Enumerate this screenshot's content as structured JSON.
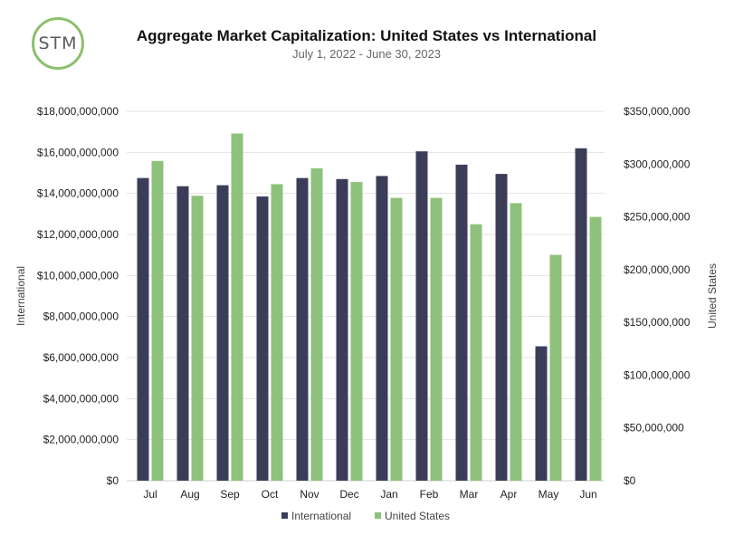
{
  "logo": {
    "text": "STM"
  },
  "chart_data": {
    "type": "bar",
    "title": "Aggregate Market Capitalization: United States vs International",
    "subtitle": "July 1, 2022 - June 30, 2023",
    "categories": [
      "Jul",
      "Aug",
      "Sep",
      "Oct",
      "Nov",
      "Dec",
      "Jan",
      "Feb",
      "Mar",
      "Apr",
      "May",
      "Jun"
    ],
    "series": [
      {
        "name": "International",
        "axis": "left",
        "color": "#3b3d58",
        "values": [
          14750000000,
          14350000000,
          14400000000,
          13850000000,
          14750000000,
          14700000000,
          14850000000,
          16050000000,
          15400000000,
          14950000000,
          6550000000,
          16200000000
        ]
      },
      {
        "name": "United States",
        "axis": "right",
        "color": "#8ec17b",
        "values": [
          303000000,
          270000000,
          329000000,
          281000000,
          296000000,
          283000000,
          268000000,
          268000000,
          243000000,
          263000000,
          214000000,
          250000000
        ]
      }
    ],
    "ylabel_left": "International",
    "ylabel_right": "United States",
    "ylim_left": [
      0,
      18000000000
    ],
    "ylim_right": [
      0,
      350000000
    ],
    "yticks_left": [
      "$0",
      "$2,000,000,000",
      "$4,000,000,000",
      "$6,000,000,000",
      "$8,000,000,000",
      "$10,000,000,000",
      "$12,000,000,000",
      "$14,000,000,000",
      "$16,000,000,000",
      "$18,000,000,000"
    ],
    "yticks_right": [
      "$0",
      "$50,000,000",
      "$100,000,000",
      "$150,000,000",
      "$200,000,000",
      "$250,000,000",
      "$300,000,000",
      "$350,000,000"
    ],
    "grid": true,
    "legend_position": "bottom"
  }
}
